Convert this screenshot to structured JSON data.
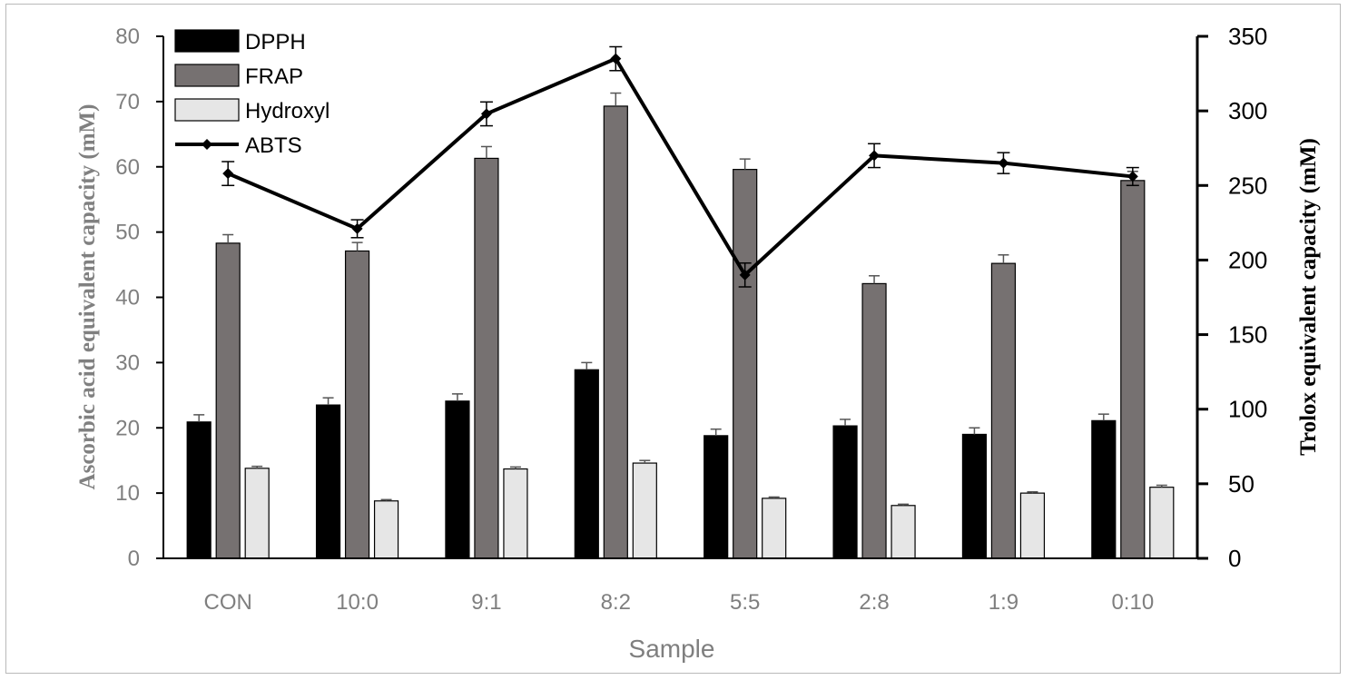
{
  "chart_data": {
    "type": "bar",
    "categories": [
      "CON",
      "10:0",
      "9:1",
      "8:2",
      "5:5",
      "2:8",
      "1:9",
      "0:10"
    ],
    "series": [
      {
        "name": "DPPH",
        "kind": "bar",
        "axis": "left",
        "color": "#000000",
        "values": [
          20.9,
          23.5,
          24.1,
          28.9,
          18.8,
          20.3,
          19.0,
          21.1
        ],
        "errors": [
          1.1,
          1.1,
          1.1,
          1.1,
          1.0,
          1.0,
          1.0,
          1.0
        ]
      },
      {
        "name": "FRAP",
        "kind": "bar",
        "axis": "left",
        "color": "#767171",
        "values": [
          48.3,
          47.1,
          61.3,
          69.3,
          59.6,
          42.1,
          45.2,
          57.9
        ],
        "errors": [
          1.3,
          1.3,
          1.8,
          2.0,
          1.6,
          1.2,
          1.3,
          1.4
        ]
      },
      {
        "name": "Hydroxyl",
        "kind": "bar",
        "axis": "left",
        "color": "#e6e6e6",
        "values": [
          13.8,
          8.8,
          13.7,
          14.6,
          9.2,
          8.1,
          10.0,
          10.9
        ],
        "errors": [
          0.3,
          0.2,
          0.3,
          0.4,
          0.2,
          0.2,
          0.2,
          0.3
        ]
      },
      {
        "name": "ABTS",
        "kind": "line",
        "axis": "right",
        "color": "#000000",
        "values": [
          258,
          221,
          298,
          335,
          190,
          270,
          265,
          256
        ],
        "errors": [
          8,
          6,
          8,
          8,
          8,
          8,
          7,
          6
        ]
      }
    ],
    "xlabel": "Sample",
    "ylabel_left": "Ascorbic acid equivalent capacity (mM)",
    "ylabel_right": "Trolox equivalent capacity (mM)",
    "ylim_left": [
      0,
      80
    ],
    "yticks_left": [
      "0",
      "10",
      "20",
      "30",
      "40",
      "50",
      "60",
      "70",
      "80"
    ],
    "ylim_right": [
      0,
      350
    ],
    "yticks_right": [
      "0",
      "50",
      "100",
      "150",
      "200",
      "250",
      "300",
      "350"
    ],
    "grid": false,
    "legend_position": "top-left"
  }
}
